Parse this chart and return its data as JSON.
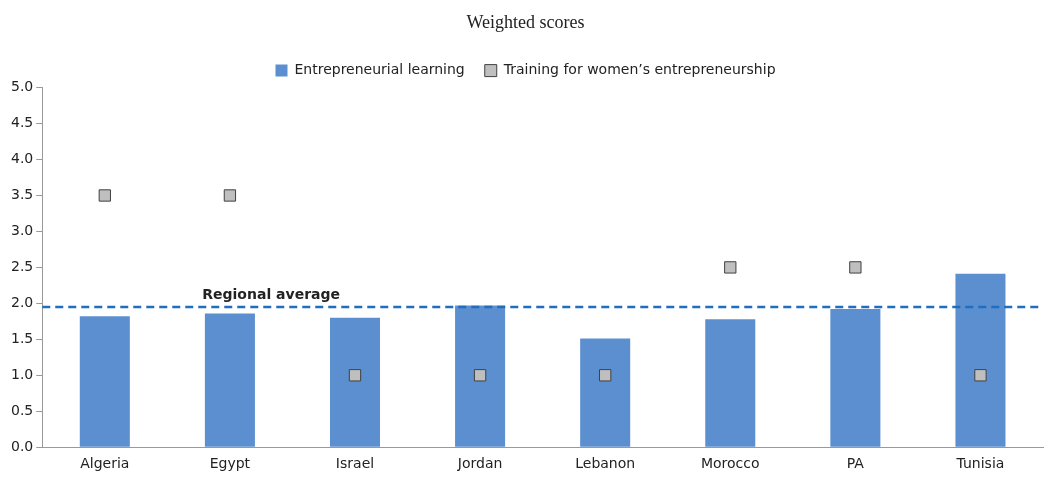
{
  "chart_data": {
    "type": "bar",
    "title": "Weighted scores",
    "categories": [
      "Algeria",
      "Egypt",
      "Israel",
      "Jordan",
      "Lebanon",
      "Morocco",
      "PA",
      "Tunisia"
    ],
    "series": [
      {
        "name": "Entrepreneurial learning",
        "color": "#5b8fcf",
        "values": [
          1.82,
          1.86,
          1.8,
          1.97,
          1.51,
          1.78,
          1.92,
          2.41
        ]
      },
      {
        "name": "Training for women’s entrepreneurship",
        "type": "scatter",
        "color": "#bfbfbf",
        "values": [
          3.5,
          3.5,
          1,
          1,
          1,
          2.5,
          2.5,
          1
        ]
      }
    ],
    "ylim": [
      0,
      5
    ],
    "yticks": [
      {
        "value": 0,
        "label": "0.0"
      },
      0.5,
      {
        "value": 1,
        "label": "1.0"
      },
      1.5,
      {
        "value": 2,
        "label": "2.0"
      },
      2.5,
      {
        "value": 3,
        "label": "3.0"
      },
      3.5,
      {
        "value": 4,
        "label": "4.0"
      },
      4.5,
      {
        "value": 5,
        "label": "5.0"
      }
    ],
    "ref_lines": [
      {
        "axis": "y",
        "value": 1.95,
        "label": "Regional average",
        "color": "#1f6fbf",
        "line_style": "dashed"
      }
    ],
    "legend": "top",
    "marker": "square",
    "grid": false
  }
}
